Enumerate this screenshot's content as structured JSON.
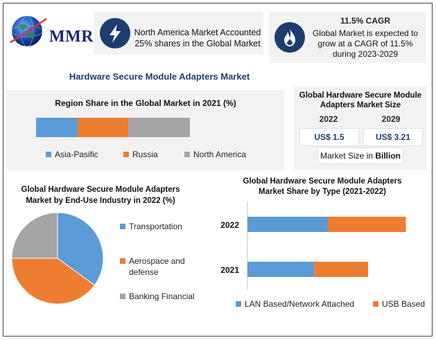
{
  "logo": {
    "text": "MMR"
  },
  "info_cards": [
    {
      "icon": "lightning-icon",
      "text": "North America Market Accounted 25% shares in the Global Market"
    },
    {
      "icon": "flame-icon",
      "heading": "11.5% CAGR",
      "text": "Global Market is expected to grow at a CAGR of 11.5% during 2023-2029"
    }
  ],
  "main_title": "Hardware Secure Module Adapters Market",
  "market_size": {
    "title_line1": "Global Hardware Secure Module",
    "title_line2": "Adapters Market Size",
    "years": [
      "2022",
      "2029"
    ],
    "values": [
      "US$ 1.5",
      "US$ 3.21"
    ],
    "unit_prefix": "Market Size in ",
    "unit_bold": "Billion"
  },
  "colors": {
    "blue": "#5b9bd5",
    "orange": "#ed7d31",
    "gray": "#a5a5a5",
    "navy": "#1f3b6e"
  },
  "chart_data": [
    {
      "type": "bar",
      "orientation": "horizontal-stacked",
      "title": "Region Share in the Global Market in 2021 (%)",
      "series": [
        {
          "name": "Asia-Pasific",
          "values": [
            27
          ]
        },
        {
          "name": "Russia",
          "values": [
            33
          ]
        },
        {
          "name": "North America",
          "values": [
            40
          ]
        }
      ],
      "legend": "bottom"
    },
    {
      "type": "pie",
      "title_line1": "Global Hardware Secure Module Adapters",
      "title_line2": "Market by End-Use Industry in 2022 (%)",
      "labels": [
        "Transportation",
        "Aerospace and defense",
        "Banking Financial"
      ],
      "legend_lines": [
        [
          "Transportation"
        ],
        [
          "Aerospace and",
          "defense"
        ],
        [
          "Banking Financial"
        ]
      ],
      "values": [
        35,
        40,
        25
      ],
      "legend": "right"
    },
    {
      "type": "bar",
      "orientation": "horizontal-stacked",
      "title_line1": "Global Hardware Secure Module Adapters",
      "title_line2": "Market Share by Type (2021-2022)",
      "categories": [
        "2022",
        "2021"
      ],
      "series": [
        {
          "name": "LAN Based/Network Attached",
          "values": [
            100,
            83
          ]
        },
        {
          "name": "USB Based",
          "values": [
            97,
            67
          ]
        }
      ],
      "xlim": [
        0,
        200
      ],
      "legend": "bottom"
    }
  ]
}
